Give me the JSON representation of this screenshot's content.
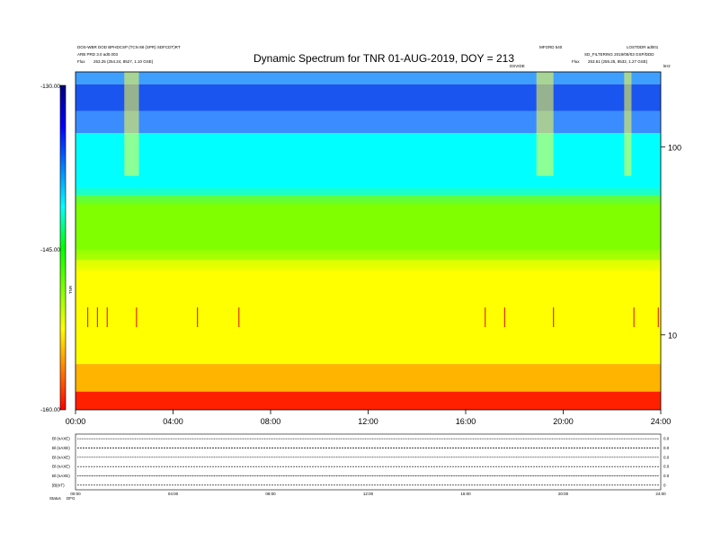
{
  "header": {
    "line1_left": "DOS-WBR DOD BPHDCSP (TCN 88 (SPR) SDFCDT)RT",
    "line2_left": "ARB PRD 3.0 ad0.003",
    "line3_left_label": "Flux",
    "line3_left_value": "253.25 (254.24, 8527, 1.10 GSE)",
    "top_right_1": "MFGRD 540",
    "top_right_2": "LOSTDDR ad001",
    "line2_right": "SD_FILTERING 2019/08/03 GSP/DDD",
    "line3_right_label": "Flux",
    "line3_right_value": "253.51 (255.25, 8532, 1.27 GSE)",
    "marker_label": "DSVIDE",
    "corner_label": "kHz"
  },
  "colorbar": {
    "max_label": "-130.00",
    "mid_label": "-145.00",
    "min_label": "-160.00",
    "unit_label": "TNR",
    "colors": [
      "#ff0000",
      "#ff7f00",
      "#ffff00",
      "#7fff00",
      "#00ff00",
      "#00ffff",
      "#007fff",
      "#0000ff",
      "#00007f"
    ]
  },
  "chart_data": {
    "type": "heatmap",
    "title": "Dynamic Spectrum for TNR 01-AUG-2019, DOY = 213",
    "xlabel": "",
    "ylabel": "",
    "x_ticks": [
      "00:00",
      "04:00",
      "08:00",
      "12:00",
      "16:00",
      "20:00",
      "24:00"
    ],
    "x_range_hours": [
      0,
      24
    ],
    "y_scale": "log",
    "y_range_khz": [
      4,
      250
    ],
    "y_ticks": [
      "10",
      "100"
    ],
    "y_tick_values": [
      10,
      100
    ],
    "color_scale_range": [
      -160,
      -130
    ],
    "frequency_bands": [
      {
        "from_khz": 215,
        "to_khz": 250,
        "color": "#3f9fff"
      },
      {
        "from_khz": 155,
        "to_khz": 215,
        "color": "#1a55f0"
      },
      {
        "from_khz": 118,
        "to_khz": 155,
        "color": "#3a8cff"
      },
      {
        "from_khz": 55,
        "to_khz": 118,
        "color": "#00ffff"
      },
      {
        "from_khz": 25,
        "to_khz": 55,
        "color": "#7fff00"
      },
      {
        "from_khz": 7,
        "to_khz": 25,
        "color": "#ffff00"
      },
      {
        "from_khz": 5,
        "to_khz": 7,
        "color": "#ffb400"
      },
      {
        "from_khz": 4,
        "to_khz": 5,
        "color": "#ff2000"
      }
    ],
    "bursts_hours": [
      {
        "from": 2.0,
        "to": 2.6
      },
      {
        "from": 18.9,
        "to": 19.6
      },
      {
        "from": 22.5,
        "to": 22.8
      }
    ],
    "spike_times_hours": [
      0.5,
      0.9,
      1.3,
      2.5,
      5.0,
      6.7,
      16.8,
      17.6,
      19.6,
      22.9,
      23.9
    ]
  },
  "panels": {
    "labels": [
      "Bl (nAXE)",
      "Bl (nAXE)",
      "Bl (nAXE)",
      "Bl (nAXE)",
      "Bl (nAXE)",
      "|B|(nT)"
    ],
    "right_values": [
      "0.0",
      "0.0",
      "0.0",
      "0.0",
      "0.0",
      "0"
    ],
    "x_ticks": [
      "00:00",
      "04:00",
      "08:00",
      "12:00",
      "16:00",
      "20:00",
      "24:00"
    ],
    "footer_left": "Status",
    "footer_val": "DFG"
  }
}
